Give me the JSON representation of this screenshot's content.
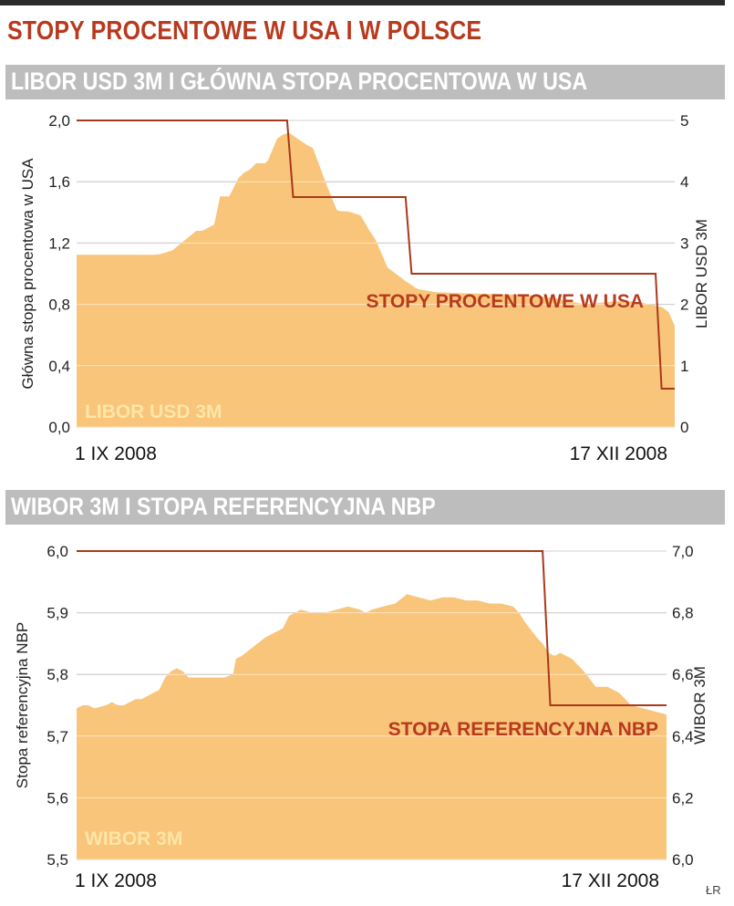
{
  "title": "STOPY PROCENTOWE W USA I W POLSCE",
  "credit": "ŁR",
  "colors": {
    "title": "#b83a1e",
    "header_bg": "#bdbdbd",
    "area": "#f8c57a",
    "rate_line": "#a8391b",
    "grid": "#9a9a9a"
  },
  "chart_data": [
    {
      "type": "area",
      "header": "LIBOR USD 3M I GŁÓWNA STOPA PROCENTOWA W USA",
      "ylabel_left": "Główna stopa procentowa w USA",
      "ylabel_right": "LIBOR USD 3M",
      "left_ticks": [
        "2,0",
        "1,6",
        "1,2",
        "0,8",
        "0,4",
        "0,0"
      ],
      "right_ticks": [
        "5",
        "4",
        "3",
        "2",
        "1",
        "0"
      ],
      "ylim_left": [
        0,
        2.0
      ],
      "ylim_right": [
        0,
        5
      ],
      "x_start_label": "1 IX 2008",
      "x_end_label": "17 XII 2008",
      "area_series": {
        "name": "LIBOR USD 3M",
        "axis": "right",
        "x": [
          0,
          0.13,
          0.14,
          0.16,
          0.2,
          0.21,
          0.23,
          0.24,
          0.255,
          0.26,
          0.27,
          0.28,
          0.29,
          0.3,
          0.315,
          0.32,
          0.335,
          0.345,
          0.355,
          0.37,
          0.385,
          0.395,
          0.4,
          0.42,
          0.435,
          0.44,
          0.45,
          0.46,
          0.475,
          0.49,
          0.5,
          0.52,
          0.55,
          0.57,
          0.6,
          0.65,
          0.7,
          0.73,
          0.76,
          0.8,
          0.85,
          0.9,
          0.93,
          0.96,
          0.98,
          0.99,
          1.0
        ],
        "values": [
          2.81,
          2.81,
          2.82,
          2.88,
          3.2,
          3.2,
          3.3,
          3.76,
          3.76,
          3.85,
          4.05,
          4.15,
          4.2,
          4.3,
          4.3,
          4.35,
          4.7,
          4.77,
          4.8,
          4.7,
          4.6,
          4.55,
          4.42,
          3.9,
          3.54,
          3.52,
          3.52,
          3.5,
          3.45,
          3.2,
          3.05,
          2.6,
          2.38,
          2.25,
          2.2,
          2.18,
          2.17,
          2.16,
          2.15,
          2.1,
          2.0,
          2.05,
          2.05,
          2.0,
          1.95,
          1.87,
          1.65
        ]
      },
      "line_series": {
        "name": "STOPY PROCENTOWE W USA",
        "axis": "left",
        "x": [
          0,
          0.352,
          0.362,
          0.362,
          0.55,
          0.56,
          0.56,
          0.968,
          0.978,
          0.978,
          1.0
        ],
        "values": [
          2.0,
          2.0,
          1.5,
          1.5,
          1.5,
          1.0,
          1.0,
          1.0,
          0.25,
          0.25,
          0.25
        ]
      }
    },
    {
      "type": "area",
      "header": "WIBOR 3M I STOPA REFERENCYJNA NBP",
      "ylabel_left": "Stopa referencyjna NBP",
      "ylabel_right": "WIBOR 3M",
      "left_ticks": [
        "6,0",
        "5,9",
        "5,8",
        "5,7",
        "5,6",
        "5,5"
      ],
      "right_ticks": [
        "7,0",
        "6,8",
        "6,6",
        "6,4",
        "6,2",
        "6,0"
      ],
      "ylim_left": [
        5.5,
        6.0
      ],
      "ylim_right": [
        6.0,
        7.0
      ],
      "x_start_label": "1 IX 2008",
      "x_end_label": "17 XII 2008",
      "area_series": {
        "name": "WIBOR 3M",
        "axis": "right",
        "x": [
          0,
          0.01,
          0.02,
          0.03,
          0.05,
          0.06,
          0.07,
          0.08,
          0.09,
          0.1,
          0.11,
          0.12,
          0.13,
          0.14,
          0.15,
          0.16,
          0.17,
          0.18,
          0.19,
          0.2,
          0.21,
          0.23,
          0.25,
          0.265,
          0.27,
          0.28,
          0.3,
          0.32,
          0.34,
          0.35,
          0.36,
          0.38,
          0.4,
          0.42,
          0.44,
          0.46,
          0.48,
          0.49,
          0.5,
          0.52,
          0.54,
          0.56,
          0.58,
          0.6,
          0.62,
          0.64,
          0.66,
          0.68,
          0.7,
          0.72,
          0.74,
          0.75,
          0.76,
          0.78,
          0.79,
          0.8,
          0.81,
          0.82,
          0.84,
          0.86,
          0.88,
          0.9,
          0.92,
          0.94,
          0.96,
          0.98,
          1.0
        ],
        "values": [
          6.49,
          6.5,
          6.5,
          6.49,
          6.5,
          6.51,
          6.5,
          6.5,
          6.51,
          6.52,
          6.52,
          6.53,
          6.54,
          6.55,
          6.59,
          6.61,
          6.62,
          6.61,
          6.59,
          6.59,
          6.59,
          6.59,
          6.59,
          6.6,
          6.65,
          6.66,
          6.69,
          6.72,
          6.74,
          6.75,
          6.79,
          6.81,
          6.8,
          6.8,
          6.81,
          6.82,
          6.81,
          6.8,
          6.81,
          6.82,
          6.83,
          6.86,
          6.85,
          6.84,
          6.85,
          6.85,
          6.84,
          6.84,
          6.83,
          6.83,
          6.82,
          6.8,
          6.77,
          6.72,
          6.7,
          6.67,
          6.66,
          6.67,
          6.65,
          6.61,
          6.56,
          6.56,
          6.54,
          6.5,
          6.49,
          6.48,
          6.47
        ]
      },
      "line_series": {
        "name": "STOPA REFERENCYJNA NBP",
        "axis": "left",
        "x": [
          0,
          0.79,
          0.803,
          0.803,
          1.0
        ],
        "values": [
          6.0,
          6.0,
          5.75,
          5.75,
          5.75
        ]
      }
    }
  ]
}
